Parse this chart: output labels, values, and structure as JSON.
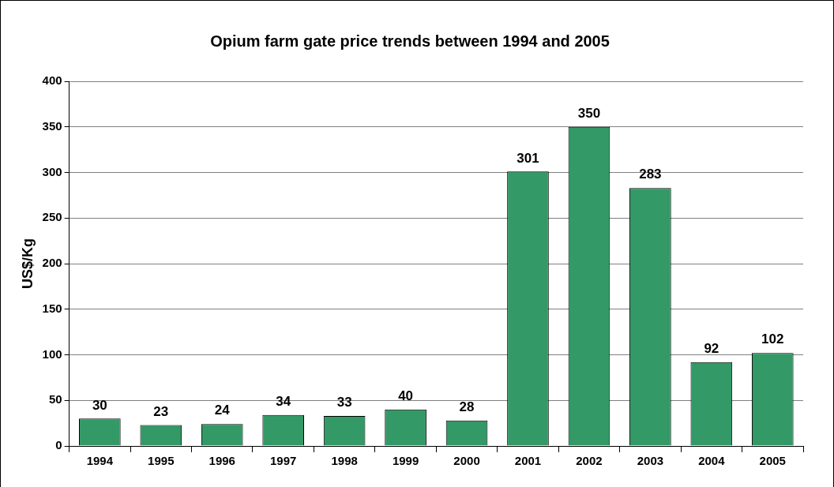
{
  "chart_data": {
    "type": "bar",
    "title": "Opium farm gate price trends between 1994 and 2005",
    "ylabel": "US$/Kg",
    "categories": [
      "1994",
      "1995",
      "1996",
      "1997",
      "1998",
      "1999",
      "2000",
      "2001",
      "2002",
      "2003",
      "2004",
      "2005"
    ],
    "values": [
      30,
      23,
      24,
      34,
      33,
      40,
      28,
      301,
      350,
      283,
      92,
      102
    ],
    "color": "#339966",
    "ylim": [
      0,
      400
    ],
    "yticks": [
      0,
      50,
      100,
      150,
      200,
      250,
      300,
      350,
      400
    ],
    "grid": "y",
    "data_labels": true,
    "legend": false
  }
}
